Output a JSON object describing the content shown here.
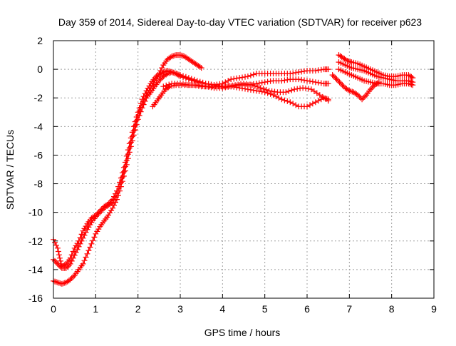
{
  "chart_data": {
    "type": "scatter",
    "title": "Day 359 of 2014, Sidereal Day-to-day VTEC variation (SDTVAR) for receiver p623",
    "xlabel": "GPS time / hours",
    "ylabel": "SDTVAR / TECUs",
    "xlim": [
      0,
      9
    ],
    "ylim": [
      -16,
      2
    ],
    "xticks": [
      "0",
      "1",
      "2",
      "3",
      "4",
      "5",
      "6",
      "7",
      "8",
      "9"
    ],
    "yticks": [
      "2",
      "0",
      "-2",
      "-4",
      "-6",
      "-8",
      "-10",
      "-12",
      "-14",
      "-16"
    ],
    "grid": true,
    "marker_color": "#ff0000",
    "marker": "plus",
    "series": [
      {
        "points": [
          [
            0.0,
            -11.9
          ],
          [
            0.1,
            -12.5
          ],
          [
            0.15,
            -13.2
          ],
          [
            0.2,
            -13.8
          ],
          [
            0.3,
            -13.6
          ],
          [
            0.4,
            -13.2
          ],
          [
            0.5,
            -12.5
          ],
          [
            0.6,
            -12.0
          ],
          [
            0.7,
            -11.3
          ],
          [
            0.8,
            -10.8
          ],
          [
            0.9,
            -10.4
          ],
          [
            1.0,
            -10.2
          ],
          [
            1.1,
            -9.9
          ],
          [
            1.2,
            -9.6
          ],
          [
            1.3,
            -9.4
          ],
          [
            1.4,
            -9.1
          ],
          [
            1.5,
            -8.5
          ],
          [
            1.6,
            -7.6
          ],
          [
            1.7,
            -6.5
          ],
          [
            1.8,
            -5.2
          ],
          [
            1.9,
            -4.0
          ],
          [
            2.0,
            -3.0
          ],
          [
            2.1,
            -2.1
          ],
          [
            2.2,
            -1.5
          ],
          [
            2.3,
            -1.0
          ],
          [
            2.4,
            -0.6
          ],
          [
            2.5,
            -0.3
          ],
          [
            2.6,
            0.3
          ],
          [
            2.7,
            0.7
          ],
          [
            2.8,
            0.9
          ],
          [
            2.9,
            1.0
          ],
          [
            3.0,
            1.0
          ],
          [
            3.1,
            0.9
          ],
          [
            3.2,
            0.7
          ],
          [
            3.3,
            0.5
          ],
          [
            3.4,
            0.3
          ],
          [
            3.5,
            0.1
          ]
        ]
      },
      {
        "points": [
          [
            0.0,
            -13.3
          ],
          [
            0.1,
            -13.6
          ],
          [
            0.2,
            -13.9
          ],
          [
            0.3,
            -13.9
          ],
          [
            0.4,
            -13.6
          ],
          [
            0.5,
            -13.0
          ],
          [
            0.6,
            -12.4
          ],
          [
            0.7,
            -11.8
          ],
          [
            0.8,
            -11.2
          ],
          [
            0.9,
            -10.7
          ],
          [
            1.0,
            -10.3
          ],
          [
            1.1,
            -10.0
          ],
          [
            1.2,
            -9.7
          ],
          [
            1.3,
            -9.5
          ],
          [
            1.4,
            -9.3
          ],
          [
            1.5,
            -8.8
          ],
          [
            1.6,
            -7.9
          ],
          [
            1.7,
            -6.8
          ],
          [
            1.8,
            -5.5
          ],
          [
            1.9,
            -4.3
          ],
          [
            2.0,
            -3.2
          ],
          [
            2.1,
            -2.4
          ],
          [
            2.2,
            -1.8
          ],
          [
            2.3,
            -1.3
          ],
          [
            2.4,
            -0.8
          ],
          [
            2.5,
            -0.4
          ],
          [
            2.6,
            -0.2
          ],
          [
            2.7,
            -0.1
          ],
          [
            2.8,
            -0.2
          ],
          [
            2.9,
            -0.3
          ],
          [
            3.0,
            -0.5
          ],
          [
            3.2,
            -0.7
          ],
          [
            3.4,
            -0.9
          ],
          [
            3.6,
            -1.0
          ],
          [
            3.8,
            -1.1
          ],
          [
            4.0,
            -1.0
          ],
          [
            4.2,
            -0.7
          ],
          [
            4.4,
            -0.6
          ],
          [
            4.6,
            -0.5
          ],
          [
            4.8,
            -0.3
          ],
          [
            5.0,
            -0.3
          ],
          [
            5.2,
            -0.3
          ],
          [
            5.4,
            -0.3
          ],
          [
            5.6,
            -0.3
          ],
          [
            5.8,
            -0.2
          ],
          [
            6.0,
            -0.1
          ],
          [
            6.2,
            -0.1
          ],
          [
            6.4,
            0.0
          ],
          [
            6.5,
            0.0
          ]
        ]
      },
      {
        "points": [
          [
            0.0,
            -14.8
          ],
          [
            0.1,
            -14.9
          ],
          [
            0.2,
            -15.0
          ],
          [
            0.3,
            -14.9
          ],
          [
            0.4,
            -14.7
          ],
          [
            0.5,
            -14.4
          ],
          [
            0.6,
            -14.0
          ],
          [
            0.7,
            -13.6
          ],
          [
            0.8,
            -12.9
          ],
          [
            0.9,
            -12.2
          ],
          [
            1.0,
            -11.5
          ],
          [
            1.1,
            -11.0
          ],
          [
            1.2,
            -10.6
          ],
          [
            1.3,
            -10.2
          ],
          [
            1.4,
            -9.7
          ],
          [
            1.5,
            -9.1
          ],
          [
            1.6,
            -8.2
          ],
          [
            1.7,
            -7.1
          ],
          [
            1.8,
            -5.8
          ],
          [
            1.9,
            -4.6
          ],
          [
            2.0,
            -3.5
          ],
          [
            2.1,
            -2.7
          ],
          [
            2.2,
            -2.0
          ],
          [
            2.3,
            -1.6
          ],
          [
            2.4,
            -1.2
          ],
          [
            2.5,
            -0.8
          ],
          [
            2.6,
            -0.5
          ],
          [
            2.7,
            -0.3
          ],
          [
            2.8,
            -0.2
          ],
          [
            2.9,
            -0.3
          ],
          [
            3.0,
            -0.4
          ],
          [
            3.2,
            -0.6
          ],
          [
            3.4,
            -0.8
          ],
          [
            3.6,
            -1.0
          ],
          [
            3.8,
            -1.1
          ],
          [
            4.0,
            -1.2
          ],
          [
            4.2,
            -1.2
          ],
          [
            4.4,
            -1.3
          ],
          [
            4.6,
            -1.4
          ],
          [
            4.8,
            -1.5
          ],
          [
            5.0,
            -1.6
          ],
          [
            5.2,
            -1.8
          ],
          [
            5.4,
            -2.1
          ],
          [
            5.6,
            -2.3
          ],
          [
            5.8,
            -2.6
          ],
          [
            6.0,
            -2.6
          ],
          [
            6.2,
            -2.3
          ],
          [
            6.4,
            -2.0
          ],
          [
            6.5,
            -2.1
          ]
        ]
      },
      {
        "points": [
          [
            2.35,
            -2.6
          ],
          [
            2.45,
            -2.2
          ],
          [
            2.55,
            -1.8
          ],
          [
            2.65,
            -1.4
          ],
          [
            2.75,
            -1.2
          ],
          [
            2.9,
            -1.1
          ],
          [
            3.1,
            -1.1
          ],
          [
            3.3,
            -1.1
          ],
          [
            3.5,
            -1.2
          ],
          [
            3.7,
            -1.2
          ],
          [
            3.9,
            -1.2
          ],
          [
            4.1,
            -1.2
          ],
          [
            4.3,
            -1.1
          ],
          [
            4.5,
            -1.0
          ],
          [
            4.7,
            -1.1
          ],
          [
            4.9,
            -1.3
          ],
          [
            5.1,
            -1.5
          ],
          [
            5.3,
            -1.6
          ],
          [
            5.5,
            -1.6
          ],
          [
            5.7,
            -1.4
          ],
          [
            5.9,
            -1.3
          ],
          [
            6.1,
            -1.4
          ],
          [
            6.3,
            -1.8
          ],
          [
            6.5,
            -2.2
          ]
        ]
      },
      {
        "points": [
          [
            2.6,
            -1.2
          ],
          [
            2.8,
            -1.0
          ],
          [
            3.0,
            -1.0
          ],
          [
            3.2,
            -1.1
          ],
          [
            3.4,
            -1.1
          ],
          [
            3.6,
            -1.2
          ],
          [
            3.8,
            -1.3
          ],
          [
            4.0,
            -1.3
          ],
          [
            4.2,
            -1.2
          ],
          [
            4.4,
            -1.1
          ],
          [
            4.6,
            -1.1
          ],
          [
            4.8,
            -1.0
          ],
          [
            5.0,
            -0.9
          ],
          [
            5.2,
            -0.8
          ],
          [
            5.4,
            -0.8
          ],
          [
            5.6,
            -0.7
          ],
          [
            5.8,
            -0.7
          ],
          [
            6.0,
            -0.8
          ],
          [
            6.2,
            -0.9
          ],
          [
            6.4,
            -1.0
          ],
          [
            6.5,
            -1.0
          ]
        ]
      },
      {
        "points": [
          [
            6.75,
            1.0
          ],
          [
            6.85,
            0.8
          ],
          [
            6.95,
            0.6
          ],
          [
            7.05,
            0.5
          ],
          [
            7.2,
            0.4
          ],
          [
            7.35,
            0.2
          ],
          [
            7.5,
            0.0
          ],
          [
            7.65,
            -0.2
          ],
          [
            7.8,
            -0.4
          ],
          [
            7.95,
            -0.5
          ],
          [
            8.1,
            -0.5
          ],
          [
            8.25,
            -0.4
          ],
          [
            8.4,
            -0.4
          ],
          [
            8.5,
            -0.6
          ]
        ]
      },
      {
        "points": [
          [
            6.75,
            0.5
          ],
          [
            6.9,
            0.3
          ],
          [
            7.05,
            0.1
          ],
          [
            7.2,
            0.0
          ],
          [
            7.35,
            -0.1
          ],
          [
            7.5,
            -0.3
          ],
          [
            7.65,
            -0.5
          ],
          [
            7.8,
            -0.6
          ],
          [
            7.95,
            -0.7
          ],
          [
            8.1,
            -0.8
          ],
          [
            8.25,
            -0.8
          ],
          [
            8.4,
            -0.8
          ],
          [
            8.5,
            -0.9
          ]
        ]
      },
      {
        "points": [
          [
            6.75,
            0.0
          ],
          [
            6.9,
            -0.2
          ],
          [
            7.05,
            -0.4
          ],
          [
            7.2,
            -0.6
          ],
          [
            7.35,
            -0.8
          ],
          [
            7.5,
            -0.9
          ],
          [
            7.65,
            -1.0
          ],
          [
            7.8,
            -1.0
          ],
          [
            7.95,
            -1.1
          ],
          [
            8.1,
            -1.1
          ],
          [
            8.25,
            -1.0
          ],
          [
            8.4,
            -1.0
          ],
          [
            8.5,
            -1.1
          ]
        ]
      },
      {
        "points": [
          [
            6.6,
            -0.4
          ],
          [
            6.7,
            -0.7
          ],
          [
            6.8,
            -1.0
          ],
          [
            6.9,
            -1.3
          ],
          [
            7.0,
            -1.5
          ],
          [
            7.1,
            -1.6
          ],
          [
            7.2,
            -1.8
          ],
          [
            7.3,
            -2.1
          ],
          [
            7.4,
            -1.8
          ],
          [
            7.5,
            -1.4
          ],
          [
            7.6,
            -1.1
          ],
          [
            7.7,
            -0.9
          ]
        ]
      }
    ]
  }
}
